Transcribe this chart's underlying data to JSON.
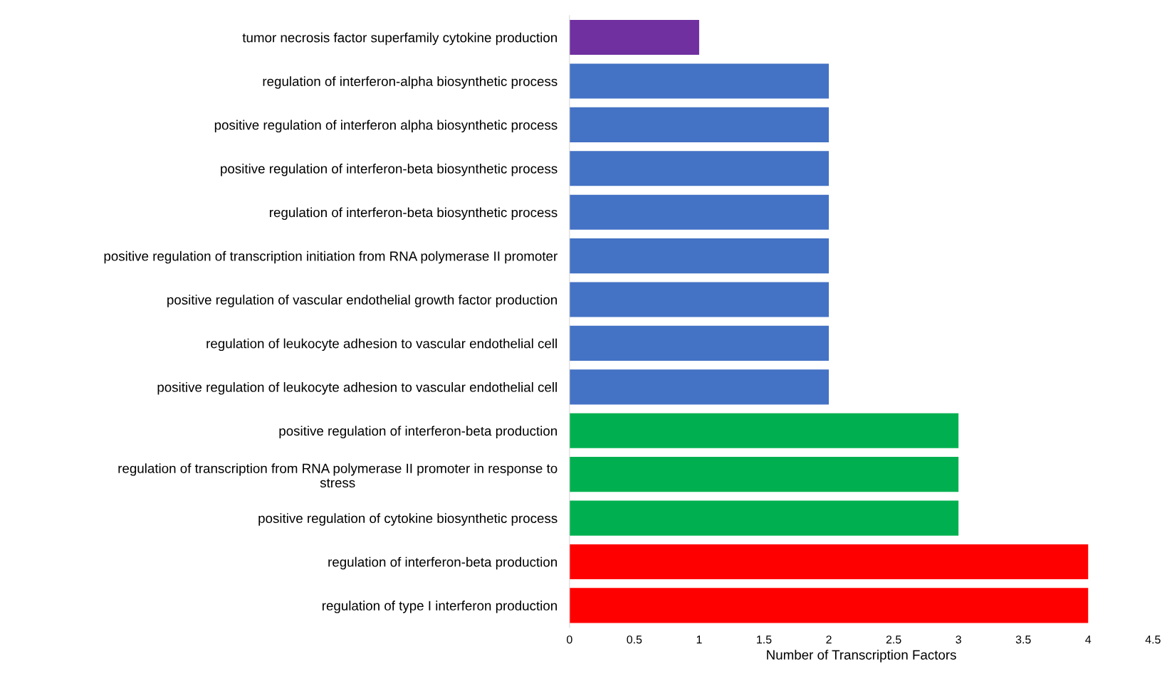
{
  "chart_data": {
    "type": "bar",
    "orientation": "horizontal",
    "xlabel": "Number of Transcription Factors",
    "categories": [
      "tumor necrosis factor superfamily cytokine production",
      "regulation of interferon-alpha biosynthetic process",
      "positive regulation of interferon alpha biosynthetic process",
      "positive regulation of interferon-beta biosynthetic process",
      "regulation of interferon-beta biosynthetic process",
      "positive regulation of transcription initiation from RNA polymerase II promoter",
      "positive regulation of vascular endothelial growth factor production",
      "regulation of leukocyte adhesion to vascular endothelial cell",
      "positive regulation of leukocyte adhesion to vascular endothelial cell",
      "positive regulation of interferon-beta production",
      "regulation of transcription from RNA polymerase II promoter in response to\nstress",
      "positive regulation of cytokine biosynthetic process",
      "regulation of interferon-beta production",
      "regulation of type I interferon production"
    ],
    "values": [
      1,
      2,
      2,
      2,
      2,
      2,
      2,
      2,
      2,
      3,
      3,
      3,
      4,
      4
    ],
    "colors": [
      "#7030a0",
      "#4472c4",
      "#4472c4",
      "#4472c4",
      "#4472c4",
      "#4472c4",
      "#4472c4",
      "#4472c4",
      "#4472c4",
      "#00b050",
      "#00b050",
      "#00b050",
      "#ff0000",
      "#ff0000"
    ],
    "xlim": [
      0,
      4.5
    ],
    "xticks": [
      0,
      0.5,
      1,
      1.5,
      2,
      2.5,
      3,
      3.5,
      4,
      4.5
    ],
    "grid": false,
    "legend": false
  }
}
